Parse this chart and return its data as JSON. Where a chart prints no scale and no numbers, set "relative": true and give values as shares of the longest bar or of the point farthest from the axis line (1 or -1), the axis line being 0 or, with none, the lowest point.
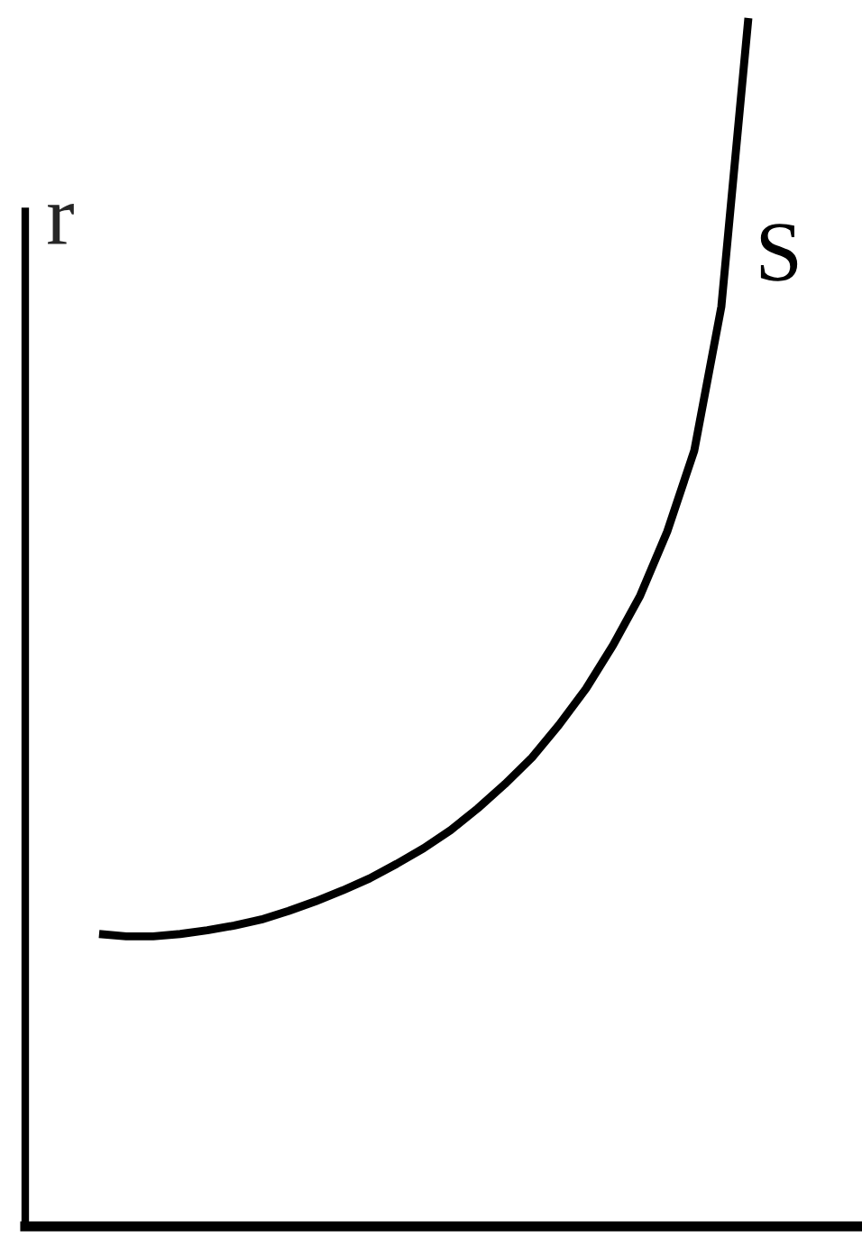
{
  "chart_data": {
    "type": "line",
    "relative": true,
    "ylabel": "r",
    "categories": [
      null,
      null,
      null,
      null,
      null,
      null,
      null,
      null,
      null,
      null,
      null,
      null,
      null,
      null,
      null,
      null,
      null,
      null,
      null,
      null,
      null,
      null,
      null,
      null,
      null
    ],
    "series": [
      {
        "name": "S",
        "color": "#000000",
        "values": [
          0.242,
          0.24,
          0.24,
          0.242,
          0.245,
          0.249,
          0.254,
          0.261,
          0.269,
          0.278,
          0.288,
          0.3,
          0.313,
          0.328,
          0.346,
          0.366,
          0.388,
          0.415,
          0.445,
          0.481,
          0.522,
          0.575,
          0.642,
          0.761,
          1.0
        ]
      }
    ],
    "legend": false,
    "marker": "none",
    "line_style": "solid"
  }
}
